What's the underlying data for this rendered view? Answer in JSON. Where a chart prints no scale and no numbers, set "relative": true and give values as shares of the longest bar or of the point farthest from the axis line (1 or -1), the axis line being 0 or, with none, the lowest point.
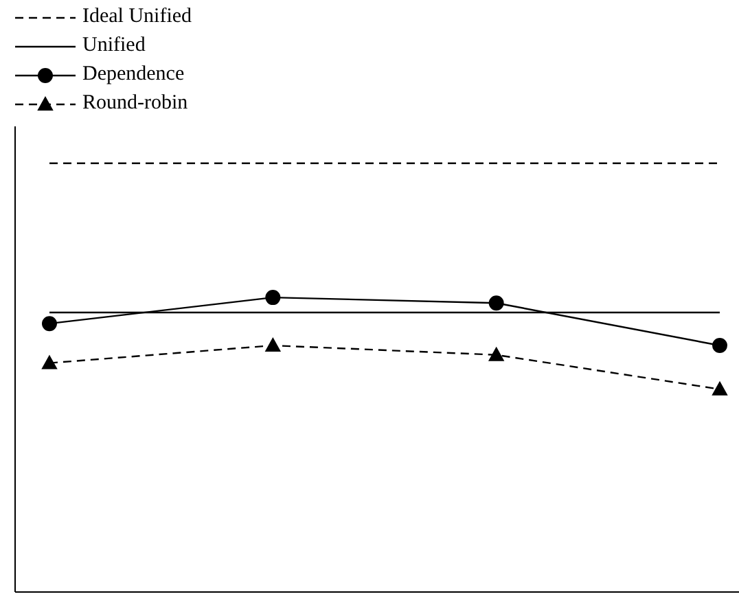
{
  "chart_data": {
    "type": "line",
    "relative": true,
    "categories": [
      null,
      null,
      null,
      null
    ],
    "legend": "top left",
    "series": [
      {
        "name": "Ideal Unified",
        "color": "#000000",
        "values": [
          1,
          1,
          1,
          1
        ],
        "line_style": "dashed",
        "marker": "none"
      },
      {
        "name": "Unified",
        "color": "#000000",
        "values": [
          0.652,
          0.652,
          0.652,
          0.652
        ],
        "line_style": "solid",
        "marker": "none"
      },
      {
        "name": "Dependence",
        "color": "#000000",
        "values": [
          0.626,
          0.687,
          0.674,
          0.575
        ],
        "line_style": "solid",
        "marker": "circle"
      },
      {
        "name": "Round-robin",
        "color": "#000000",
        "values": [
          0.534,
          0.575,
          0.553,
          0.473
        ],
        "line_style": "dashed",
        "marker": "triangle"
      }
    ]
  }
}
